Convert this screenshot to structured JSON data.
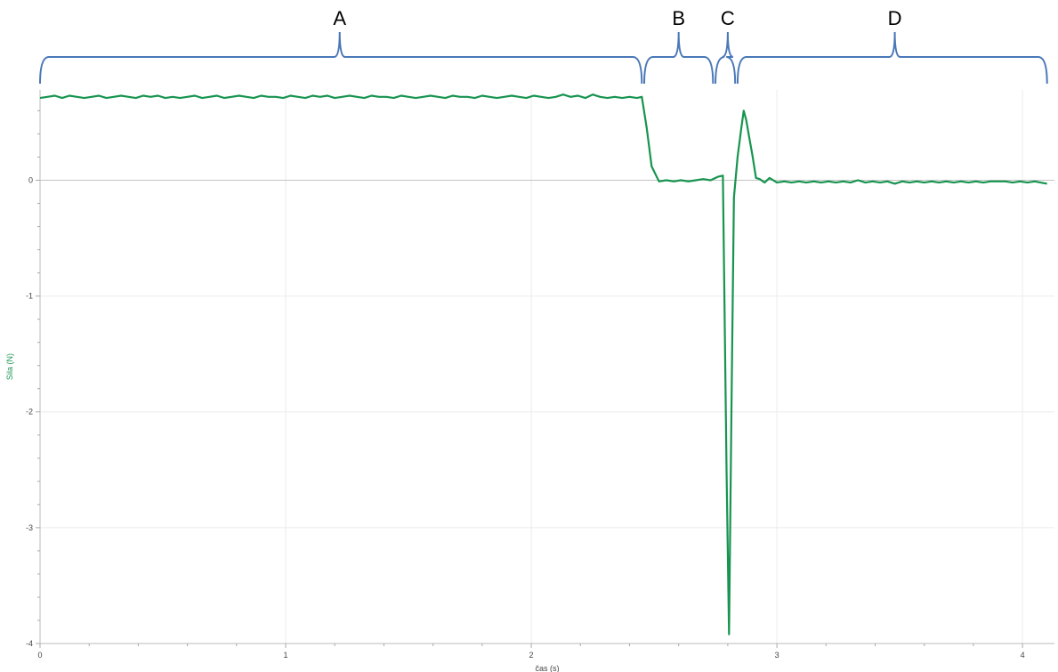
{
  "chart_data": {
    "type": "line",
    "title": "",
    "xlabel": "čas (s)",
    "ylabel": "Sila (N)",
    "xlim": [
      0,
      4.13
    ],
    "ylim": [
      -4,
      0.78
    ],
    "xticks": [
      0,
      1,
      2,
      3,
      4
    ],
    "yticks": [
      -4,
      -3,
      -2,
      -1,
      0
    ],
    "x_minor_step": 0.2,
    "y_minor_step": 0.2,
    "grid": true,
    "series": [
      {
        "color": "#17944f",
        "points": [
          [
            0.0,
            0.71
          ],
          [
            0.03,
            0.72
          ],
          [
            0.06,
            0.73
          ],
          [
            0.09,
            0.71
          ],
          [
            0.12,
            0.73
          ],
          [
            0.15,
            0.72
          ],
          [
            0.18,
            0.71
          ],
          [
            0.21,
            0.72
          ],
          [
            0.24,
            0.73
          ],
          [
            0.27,
            0.71
          ],
          [
            0.3,
            0.72
          ],
          [
            0.33,
            0.73
          ],
          [
            0.36,
            0.72
          ],
          [
            0.39,
            0.71
          ],
          [
            0.42,
            0.73
          ],
          [
            0.45,
            0.72
          ],
          [
            0.48,
            0.73
          ],
          [
            0.51,
            0.71
          ],
          [
            0.54,
            0.72
          ],
          [
            0.57,
            0.71
          ],
          [
            0.6,
            0.72
          ],
          [
            0.63,
            0.73
          ],
          [
            0.66,
            0.71
          ],
          [
            0.69,
            0.72
          ],
          [
            0.72,
            0.73
          ],
          [
            0.75,
            0.71
          ],
          [
            0.78,
            0.72
          ],
          [
            0.81,
            0.73
          ],
          [
            0.84,
            0.72
          ],
          [
            0.87,
            0.71
          ],
          [
            0.9,
            0.73
          ],
          [
            0.93,
            0.72
          ],
          [
            0.96,
            0.72
          ],
          [
            0.99,
            0.71
          ],
          [
            1.02,
            0.73
          ],
          [
            1.05,
            0.72
          ],
          [
            1.08,
            0.71
          ],
          [
            1.11,
            0.73
          ],
          [
            1.14,
            0.72
          ],
          [
            1.17,
            0.73
          ],
          [
            1.2,
            0.71
          ],
          [
            1.23,
            0.72
          ],
          [
            1.26,
            0.73
          ],
          [
            1.29,
            0.72
          ],
          [
            1.32,
            0.71
          ],
          [
            1.35,
            0.73
          ],
          [
            1.38,
            0.72
          ],
          [
            1.41,
            0.72
          ],
          [
            1.44,
            0.71
          ],
          [
            1.47,
            0.73
          ],
          [
            1.5,
            0.72
          ],
          [
            1.53,
            0.71
          ],
          [
            1.56,
            0.72
          ],
          [
            1.59,
            0.73
          ],
          [
            1.62,
            0.72
          ],
          [
            1.65,
            0.71
          ],
          [
            1.68,
            0.73
          ],
          [
            1.71,
            0.72
          ],
          [
            1.74,
            0.72
          ],
          [
            1.77,
            0.71
          ],
          [
            1.8,
            0.73
          ],
          [
            1.83,
            0.72
          ],
          [
            1.86,
            0.71
          ],
          [
            1.89,
            0.72
          ],
          [
            1.92,
            0.73
          ],
          [
            1.95,
            0.72
          ],
          [
            1.98,
            0.71
          ],
          [
            2.01,
            0.73
          ],
          [
            2.04,
            0.72
          ],
          [
            2.07,
            0.71
          ],
          [
            2.1,
            0.72
          ],
          [
            2.13,
            0.74
          ],
          [
            2.16,
            0.72
          ],
          [
            2.19,
            0.73
          ],
          [
            2.22,
            0.71
          ],
          [
            2.25,
            0.74
          ],
          [
            2.28,
            0.72
          ],
          [
            2.31,
            0.71
          ],
          [
            2.34,
            0.72
          ],
          [
            2.37,
            0.71
          ],
          [
            2.4,
            0.72
          ],
          [
            2.43,
            0.71
          ],
          [
            2.45,
            0.72
          ],
          [
            2.47,
            0.45
          ],
          [
            2.49,
            0.12
          ],
          [
            2.52,
            -0.01
          ],
          [
            2.55,
            0.0
          ],
          [
            2.58,
            -0.01
          ],
          [
            2.61,
            0.0
          ],
          [
            2.64,
            -0.01
          ],
          [
            2.67,
            0.0
          ],
          [
            2.7,
            0.01
          ],
          [
            2.73,
            0.0
          ],
          [
            2.76,
            0.03
          ],
          [
            2.78,
            0.04
          ],
          [
            2.795,
            -2.5
          ],
          [
            2.805,
            -3.92
          ],
          [
            2.815,
            -2.0
          ],
          [
            2.825,
            -0.15
          ],
          [
            2.84,
            0.2
          ],
          [
            2.855,
            0.45
          ],
          [
            2.865,
            0.6
          ],
          [
            2.875,
            0.52
          ],
          [
            2.885,
            0.4
          ],
          [
            2.9,
            0.22
          ],
          [
            2.915,
            0.02
          ],
          [
            2.93,
            0.01
          ],
          [
            2.95,
            -0.02
          ],
          [
            2.97,
            0.02
          ],
          [
            3.0,
            -0.02
          ],
          [
            3.03,
            -0.01
          ],
          [
            3.06,
            -0.02
          ],
          [
            3.09,
            -0.01
          ],
          [
            3.12,
            -0.02
          ],
          [
            3.15,
            -0.01
          ],
          [
            3.18,
            -0.02
          ],
          [
            3.21,
            -0.01
          ],
          [
            3.24,
            -0.02
          ],
          [
            3.27,
            -0.01
          ],
          [
            3.3,
            -0.02
          ],
          [
            3.33,
            0.0
          ],
          [
            3.36,
            -0.02
          ],
          [
            3.39,
            -0.01
          ],
          [
            3.42,
            -0.02
          ],
          [
            3.45,
            -0.01
          ],
          [
            3.48,
            -0.03
          ],
          [
            3.51,
            -0.01
          ],
          [
            3.54,
            -0.02
          ],
          [
            3.57,
            -0.01
          ],
          [
            3.6,
            -0.02
          ],
          [
            3.63,
            -0.01
          ],
          [
            3.66,
            -0.02
          ],
          [
            3.69,
            -0.01
          ],
          [
            3.72,
            -0.02
          ],
          [
            3.75,
            -0.01
          ],
          [
            3.78,
            -0.02
          ],
          [
            3.81,
            -0.01
          ],
          [
            3.84,
            -0.02
          ],
          [
            3.87,
            -0.01
          ],
          [
            3.9,
            -0.01
          ],
          [
            3.93,
            -0.01
          ],
          [
            3.96,
            -0.02
          ],
          [
            3.99,
            -0.01
          ],
          [
            4.02,
            -0.02
          ],
          [
            4.05,
            -0.01
          ],
          [
            4.1,
            -0.03
          ]
        ]
      }
    ],
    "brackets": [
      {
        "label": "A",
        "from": 0.0,
        "to": 2.45,
        "peak": 1.22
      },
      {
        "label": "B",
        "from": 2.46,
        "to": 2.74,
        "peak": 2.6
      },
      {
        "label": "C",
        "from": 2.75,
        "to": 2.83,
        "peak": 2.8
      },
      {
        "label": "D",
        "from": 2.84,
        "to": 4.1,
        "peak": 3.48
      }
    ],
    "colors": {
      "line": "#17944f",
      "ylabel": "#17944f",
      "bracket": "#4a78b8",
      "grid": "#ebebeb",
      "zero_line": "#c4c4c4",
      "axis": "#bbbbbb"
    }
  }
}
